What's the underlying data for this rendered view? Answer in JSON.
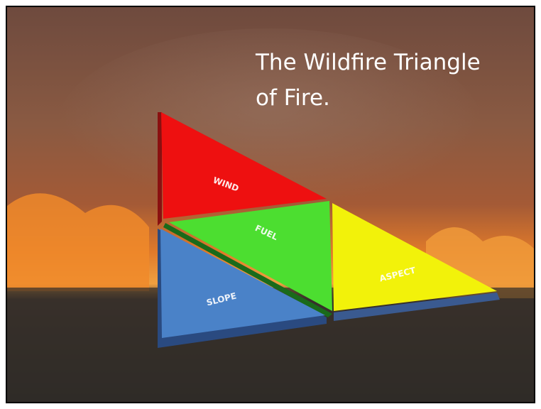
{
  "slide": {
    "title_lines": [
      "The Wildfire Triangle",
      "of Fire."
    ],
    "pieces": {
      "wind": "WIND",
      "fuel": "FUEL",
      "slope": "SLOPE",
      "aspect": "ASPECT"
    }
  }
}
